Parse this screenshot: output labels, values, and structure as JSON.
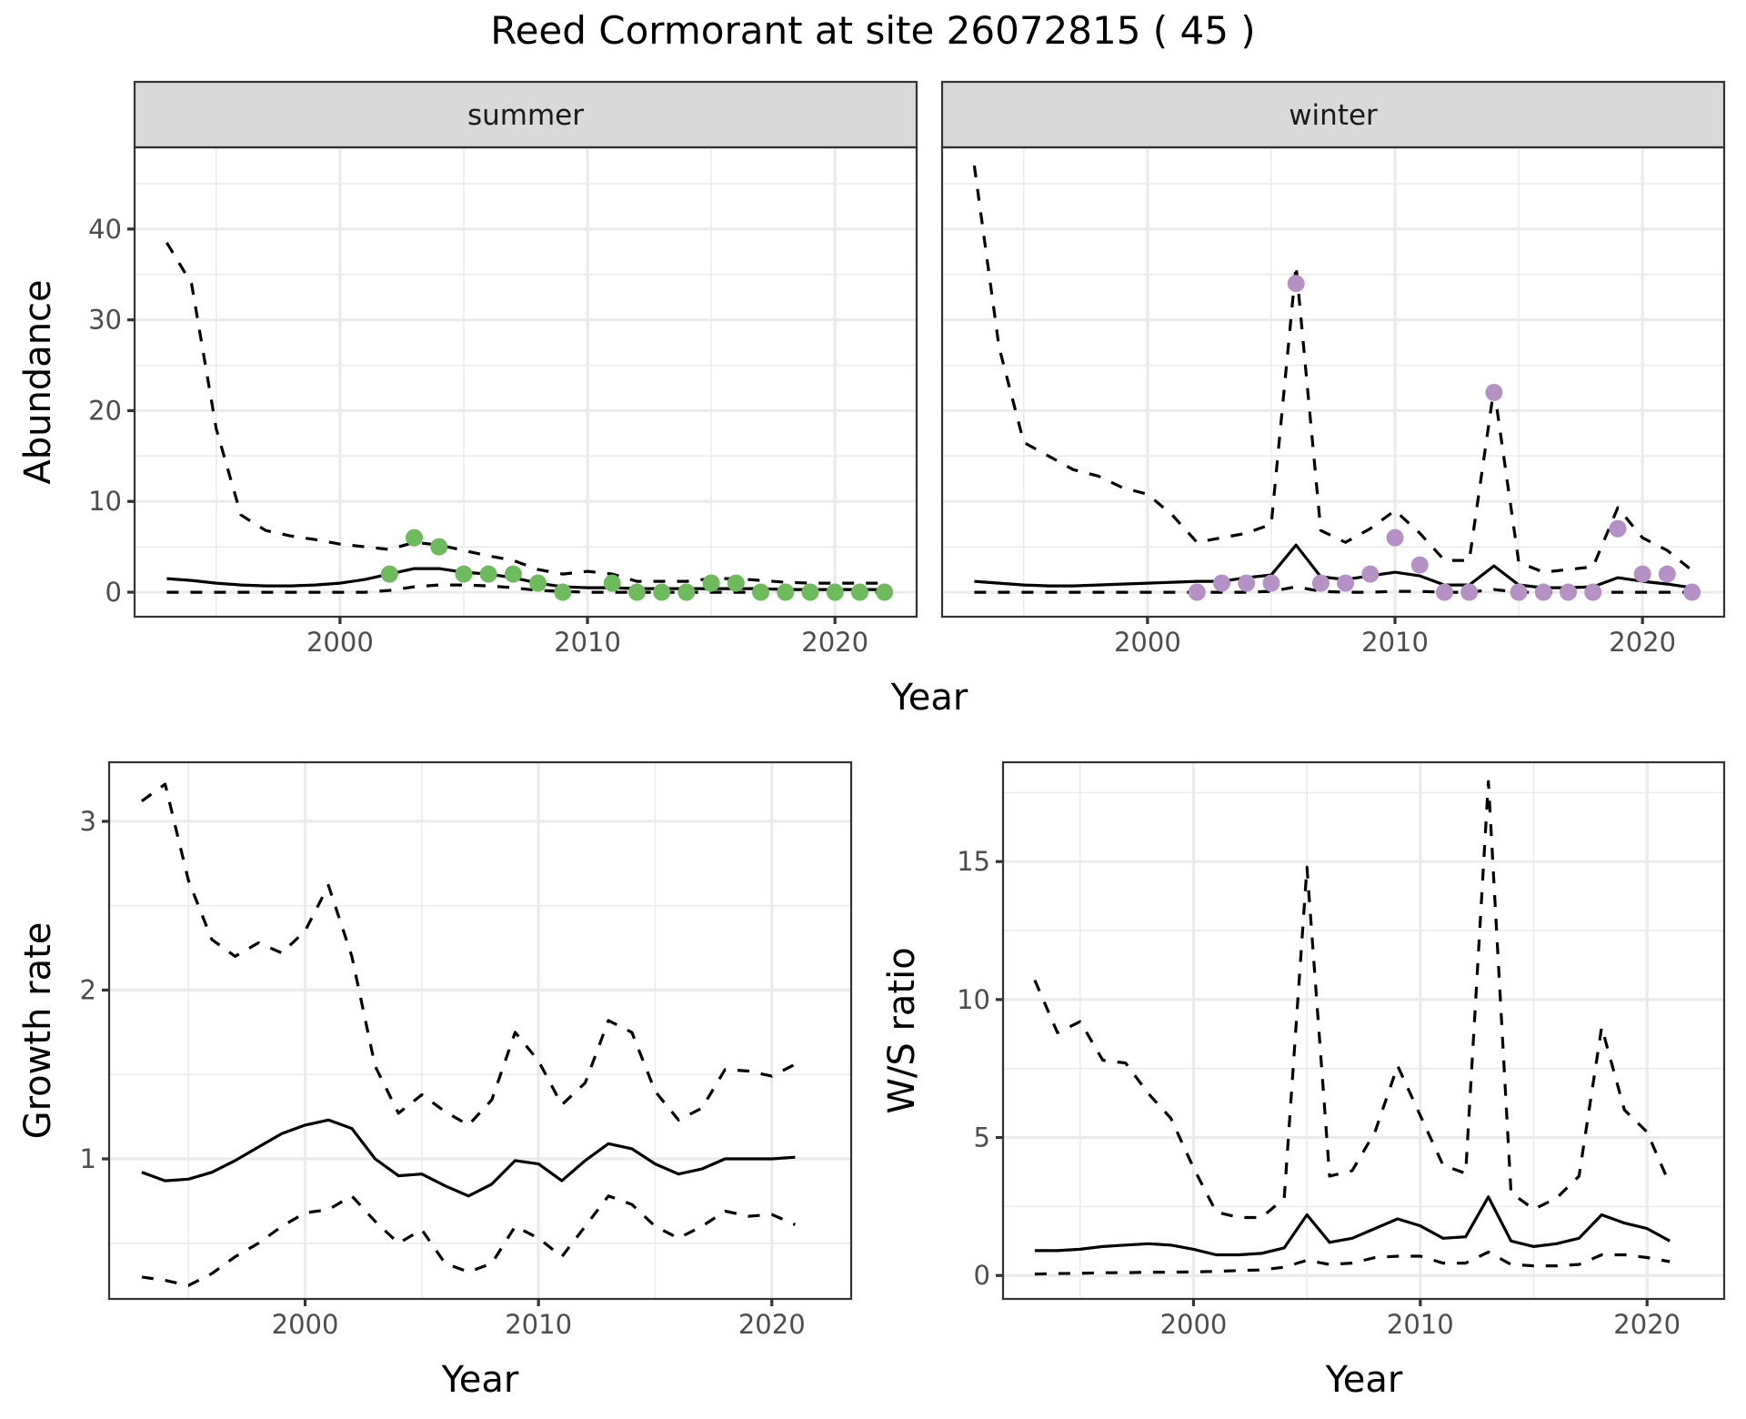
{
  "chart_data": [
    {
      "type": "line",
      "panel": "abundance-summer",
      "title": "Reed Cormorant at site 26072815 ( 45 )",
      "facet_label": "summer",
      "xlabel": "Year",
      "ylabel": "Abundance",
      "xlim": [
        1991.7,
        2023.3
      ],
      "ylim": [
        -2.7,
        49
      ],
      "xticks": [
        2000,
        2010,
        2020
      ],
      "xtick_labels": [
        "2000",
        "2010",
        "2020"
      ],
      "yticks": [
        0,
        10,
        20,
        30,
        40
      ],
      "ytick_labels": [
        "0",
        "10",
        "20",
        "30",
        "40"
      ],
      "grid": true,
      "x": [
        1993,
        1994,
        1995,
        1996,
        1997,
        1998,
        1999,
        2000,
        2001,
        2002,
        2003,
        2004,
        2005,
        2006,
        2007,
        2008,
        2009,
        2010,
        2011,
        2012,
        2013,
        2014,
        2015,
        2016,
        2017,
        2018,
        2019,
        2020,
        2021,
        2022
      ],
      "series": [
        {
          "name": "mean",
          "style": "solid",
          "values": [
            1.5,
            1.3,
            1.0,
            0.8,
            0.7,
            0.7,
            0.8,
            1.0,
            1.4,
            2.0,
            2.6,
            2.6,
            2.2,
            2.0,
            1.6,
            1.0,
            0.6,
            0.5,
            0.5,
            0.4,
            0.4,
            0.4,
            0.4,
            0.4,
            0.4,
            0.3,
            0.3,
            0.3,
            0.3,
            0.3
          ]
        },
        {
          "name": "upper",
          "style": "dashed",
          "values": [
            38.5,
            34,
            18,
            8.5,
            6.8,
            6.2,
            5.8,
            5.3,
            5.0,
            4.7,
            5.5,
            5.2,
            4.6,
            4.0,
            3.5,
            2.5,
            2.0,
            2.3,
            2.0,
            1.2,
            1.2,
            1.2,
            1.5,
            1.5,
            1.3,
            1.1,
            1.0,
            1.0,
            1.0,
            1.0
          ]
        },
        {
          "name": "lower",
          "style": "dashed",
          "values": [
            0,
            0,
            0,
            0,
            0,
            0,
            0,
            0,
            0,
            0.2,
            0.6,
            0.8,
            0.8,
            0.7,
            0.5,
            0.2,
            0.1,
            0,
            0,
            0,
            0,
            0,
            0,
            0,
            0,
            0,
            0,
            0,
            0,
            0
          ]
        }
      ],
      "points": {
        "color": "#6dbb5d",
        "x": [
          2002,
          2003,
          2004,
          2005,
          2006,
          2007,
          2008,
          2009,
          2011,
          2012,
          2013,
          2014,
          2015,
          2016,
          2017,
          2018,
          2019,
          2020,
          2021,
          2022
        ],
        "y": [
          2,
          6,
          5,
          2,
          2,
          2,
          1,
          0,
          1,
          0,
          0,
          0,
          1,
          1,
          0,
          0,
          0,
          0,
          0,
          0
        ]
      }
    },
    {
      "type": "line",
      "panel": "abundance-winter",
      "facet_label": "winter",
      "xlabel": "Year",
      "ylabel": "Abundance",
      "xlim": [
        1991.7,
        2023.3
      ],
      "ylim": [
        -2.7,
        49
      ],
      "xticks": [
        2000,
        2010,
        2020
      ],
      "xtick_labels": [
        "2000",
        "2010",
        "2020"
      ],
      "grid": true,
      "x": [
        1993,
        1994,
        1995,
        1996,
        1997,
        1998,
        1999,
        2000,
        2001,
        2002,
        2003,
        2004,
        2005,
        2006,
        2007,
        2008,
        2009,
        2010,
        2011,
        2012,
        2013,
        2014,
        2015,
        2016,
        2017,
        2018,
        2019,
        2020,
        2021,
        2022
      ],
      "series": [
        {
          "name": "mean",
          "style": "solid",
          "values": [
            1.2,
            1.0,
            0.8,
            0.7,
            0.7,
            0.8,
            0.9,
            1.0,
            1.1,
            1.2,
            1.2,
            1.6,
            1.9,
            5.2,
            1.7,
            1.4,
            1.8,
            2.2,
            1.8,
            0.8,
            0.8,
            2.9,
            0.8,
            0.5,
            0.5,
            0.6,
            1.6,
            1.2,
            0.9,
            0.5
          ]
        },
        {
          "name": "upper",
          "style": "dashed",
          "values": [
            47,
            27,
            16.5,
            15,
            13.5,
            12.8,
            11.5,
            10.8,
            8.5,
            5.5,
            6.0,
            6.5,
            7.5,
            36,
            6.8,
            5.5,
            7.0,
            9.0,
            6.5,
            3.5,
            3.5,
            22.5,
            3.3,
            2.2,
            2.5,
            2.8,
            9.3,
            6.0,
            4.6,
            2.4
          ]
        },
        {
          "name": "lower",
          "style": "dashed",
          "values": [
            0,
            0,
            0,
            0,
            0,
            0,
            0,
            0,
            0,
            0,
            0,
            0,
            0.1,
            0.6,
            0.1,
            0,
            0,
            0.1,
            0.1,
            0,
            0,
            0.3,
            0,
            0,
            0,
            0,
            0,
            0,
            0,
            0
          ]
        }
      ],
      "points": {
        "color": "#b591c6",
        "x": [
          2002,
          2003,
          2004,
          2005,
          2006,
          2007,
          2008,
          2009,
          2010,
          2011,
          2012,
          2013,
          2014,
          2015,
          2016,
          2017,
          2018,
          2019,
          2020,
          2021,
          2022
        ],
        "y": [
          0,
          1,
          1,
          1,
          34,
          1,
          1,
          2,
          6,
          3,
          0,
          0,
          22,
          0,
          0,
          0,
          0,
          7,
          2,
          2,
          0
        ]
      }
    },
    {
      "type": "line",
      "panel": "growth-rate",
      "xlabel": "Year",
      "ylabel": "Growth rate",
      "xlim": [
        1991.6,
        2023.4
      ],
      "ylim": [
        0.17,
        3.35
      ],
      "xticks": [
        2000,
        2010,
        2020
      ],
      "xtick_labels": [
        "2000",
        "2010",
        "2020"
      ],
      "yticks": [
        1,
        2,
        3
      ],
      "ytick_labels": [
        "1",
        "2",
        "3"
      ],
      "grid": true,
      "x": [
        1993,
        1994,
        1995,
        1996,
        1997,
        1998,
        1999,
        2000,
        2001,
        2002,
        2003,
        2004,
        2005,
        2006,
        2007,
        2008,
        2009,
        2010,
        2011,
        2012,
        2013,
        2014,
        2015,
        2016,
        2017,
        2018,
        2019,
        2020,
        2021
      ],
      "series": [
        {
          "name": "mean",
          "style": "solid",
          "values": [
            0.92,
            0.87,
            0.88,
            0.92,
            0.99,
            1.07,
            1.15,
            1.2,
            1.23,
            1.18,
            1.0,
            0.9,
            0.91,
            0.84,
            0.78,
            0.85,
            0.99,
            0.97,
            0.87,
            0.99,
            1.09,
            1.06,
            0.97,
            0.91,
            0.94,
            1.0,
            1.0,
            1.0,
            1.01
          ]
        },
        {
          "name": "upper",
          "style": "dashed",
          "values": [
            3.12,
            3.22,
            2.65,
            2.3,
            2.2,
            2.28,
            2.22,
            2.35,
            2.62,
            2.2,
            1.55,
            1.27,
            1.38,
            1.28,
            1.2,
            1.35,
            1.75,
            1.58,
            1.32,
            1.45,
            1.82,
            1.75,
            1.4,
            1.23,
            1.3,
            1.53,
            1.52,
            1.49,
            1.56
          ]
        },
        {
          "name": "lower",
          "style": "dashed",
          "values": [
            0.3,
            0.28,
            0.25,
            0.32,
            0.42,
            0.5,
            0.6,
            0.68,
            0.7,
            0.78,
            0.63,
            0.5,
            0.58,
            0.38,
            0.33,
            0.38,
            0.6,
            0.53,
            0.42,
            0.6,
            0.78,
            0.73,
            0.6,
            0.53,
            0.6,
            0.69,
            0.66,
            0.67,
            0.61
          ]
        }
      ]
    },
    {
      "type": "line",
      "panel": "ws-ratio",
      "xlabel": "Year",
      "ylabel": "W/S ratio",
      "xlim": [
        1991.6,
        2023.4
      ],
      "ylim": [
        -0.85,
        18.6
      ],
      "xticks": [
        2000,
        2010,
        2020
      ],
      "xtick_labels": [
        "2000",
        "2010",
        "2020"
      ],
      "yticks": [
        0,
        5,
        10,
        15
      ],
      "ytick_labels": [
        "0",
        "5",
        "10",
        "15"
      ],
      "grid": true,
      "x": [
        1993,
        1994,
        1995,
        1996,
        1997,
        1998,
        1999,
        2000,
        2001,
        2002,
        2003,
        2004,
        2005,
        2006,
        2007,
        2008,
        2009,
        2010,
        2011,
        2012,
        2013,
        2014,
        2015,
        2016,
        2017,
        2018,
        2019,
        2020,
        2021
      ],
      "series": [
        {
          "name": "mean",
          "style": "solid",
          "values": [
            0.9,
            0.9,
            0.95,
            1.05,
            1.1,
            1.15,
            1.1,
            0.95,
            0.75,
            0.75,
            0.8,
            1.0,
            2.2,
            1.2,
            1.35,
            1.7,
            2.05,
            1.8,
            1.35,
            1.4,
            2.85,
            1.25,
            1.05,
            1.15,
            1.35,
            2.2,
            1.9,
            1.7,
            1.25
          ]
        },
        {
          "name": "upper",
          "style": "dashed",
          "values": [
            10.7,
            8.8,
            9.2,
            7.8,
            7.7,
            6.6,
            5.7,
            3.9,
            2.3,
            2.1,
            2.1,
            2.8,
            14.8,
            3.6,
            3.8,
            5.2,
            7.6,
            5.8,
            4.0,
            3.7,
            17.9,
            3.0,
            2.4,
            2.8,
            3.6,
            9.0,
            6.0,
            5.2,
            3.3
          ]
        },
        {
          "name": "lower",
          "style": "dashed",
          "values": [
            0.05,
            0.07,
            0.08,
            0.1,
            0.1,
            0.12,
            0.12,
            0.13,
            0.15,
            0.18,
            0.2,
            0.3,
            0.55,
            0.4,
            0.45,
            0.65,
            0.7,
            0.7,
            0.45,
            0.45,
            0.85,
            0.4,
            0.35,
            0.35,
            0.4,
            0.75,
            0.75,
            0.65,
            0.5
          ]
        }
      ]
    }
  ]
}
